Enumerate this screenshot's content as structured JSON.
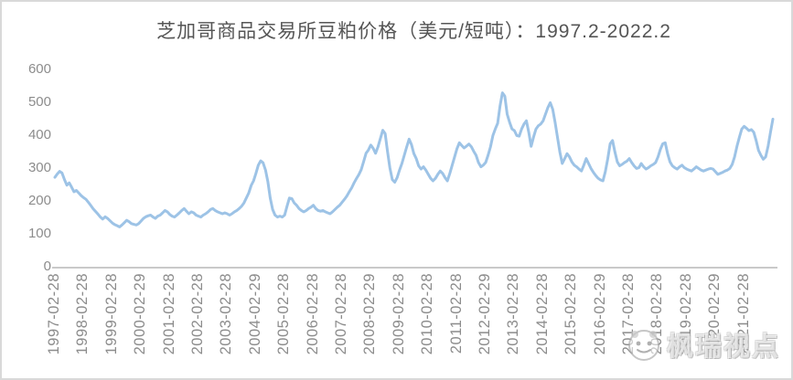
{
  "watermark": {
    "text": "枫瑞视点",
    "logo": "panda-face-logo"
  },
  "colors": {
    "line": "#9DC3E6",
    "axis_line": "#C9C9C9",
    "tick_text": "#8C8C8C",
    "title_text": "#555555",
    "border": "#D9D9D9",
    "background": "#FFFFFF"
  },
  "chart_data": {
    "type": "line",
    "title": "芝加哥商品交易所豆粕价格（美元/短吨）：1997.2-2022.2",
    "series_name": "豆粕价格",
    "unit": "美元/短吨",
    "xlabel": "",
    "ylabel": "",
    "ylim": [
      0,
      600
    ],
    "yticks": [
      0,
      100,
      200,
      300,
      400,
      500,
      600
    ],
    "grid": false,
    "legend": false,
    "line_color": "#9DC3E6",
    "xticks": [
      "1997-02-28",
      "1998-02-28",
      "1999-02-28",
      "2000-02-29",
      "2001-02-28",
      "2002-02-28",
      "2003-02-28",
      "2004-02-29",
      "2005-02-28",
      "2006-02-28",
      "2007-02-28",
      "2008-02-29",
      "2009-02-28",
      "2010-02-28",
      "2011-02-28",
      "2012-02-29",
      "2013-02-28",
      "2014-02-28",
      "2015-02-28",
      "2016-02-29",
      "2017-02-28",
      "2018-02-28",
      "2019-02-28",
      "2020-02-29",
      "2021-02-28"
    ],
    "frequency": "monthly",
    "x_first": "1997-02",
    "x_last": "2022-02",
    "values": [
      272,
      282,
      290,
      285,
      265,
      248,
      255,
      242,
      228,
      232,
      224,
      216,
      210,
      205,
      196,
      186,
      176,
      168,
      160,
      151,
      145,
      152,
      147,
      140,
      133,
      128,
      125,
      121,
      127,
      134,
      141,
      137,
      131,
      129,
      127,
      131,
      139,
      147,
      152,
      155,
      157,
      151,
      147,
      154,
      157,
      164,
      171,
      167,
      159,
      154,
      151,
      157,
      164,
      171,
      177,
      169,
      161,
      167,
      164,
      157,
      154,
      151,
      157,
      161,
      167,
      174,
      177,
      171,
      167,
      164,
      161,
      164,
      161,
      157,
      161,
      167,
      171,
      177,
      184,
      194,
      209,
      224,
      247,
      261,
      284,
      309,
      322,
      316,
      294,
      258,
      208,
      174,
      157,
      151,
      154,
      151,
      157,
      184,
      209,
      207,
      194,
      187,
      177,
      171,
      167,
      171,
      177,
      181,
      187,
      177,
      171,
      169,
      171,
      167,
      164,
      161,
      167,
      174,
      181,
      187,
      196,
      205,
      215,
      228,
      240,
      255,
      268,
      280,
      295,
      320,
      345,
      355,
      370,
      360,
      345,
      365,
      390,
      415,
      405,
      350,
      300,
      265,
      257,
      271,
      294,
      314,
      339,
      364,
      388,
      371,
      344,
      329,
      307,
      297,
      304,
      294,
      281,
      269,
      261,
      269,
      281,
      291,
      284,
      271,
      261,
      284,
      309,
      334,
      359,
      377,
      369,
      361,
      367,
      373,
      365,
      351,
      339,
      317,
      304,
      309,
      317,
      339,
      364,
      399,
      419,
      436,
      489,
      529,
      519,
      464,
      439,
      419,
      414,
      399,
      397,
      419,
      434,
      444,
      409,
      366,
      394,
      419,
      429,
      434,
      444,
      464,
      484,
      499,
      479,
      439,
      394,
      349,
      314,
      329,
      344,
      334,
      319,
      309,
      304,
      297,
      291,
      309,
      329,
      314,
      299,
      287,
      277,
      269,
      264,
      261,
      289,
      329,
      374,
      384,
      349,
      319,
      307,
      311,
      317,
      321,
      329,
      317,
      307,
      299,
      301,
      314,
      304,
      297,
      301,
      307,
      311,
      317,
      334,
      357,
      374,
      377,
      344,
      319,
      307,
      301,
      297,
      304,
      309,
      301,
      297,
      294,
      291,
      297,
      304,
      299,
      294,
      291,
      294,
      297,
      299,
      297,
      289,
      281,
      284,
      287,
      291,
      294,
      299,
      311,
      334,
      367,
      394,
      419,
      427,
      421,
      414,
      417,
      409,
      384,
      354,
      339,
      327,
      334,
      367,
      409,
      449
    ]
  }
}
